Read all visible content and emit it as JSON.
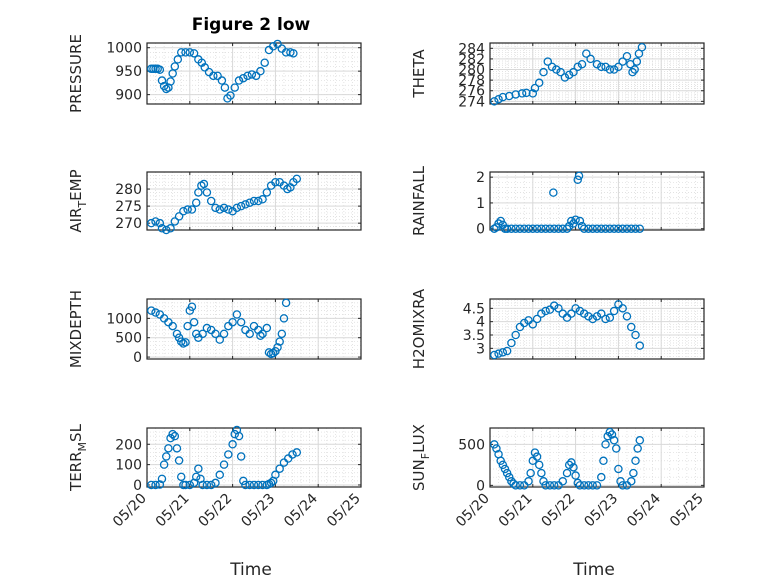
{
  "title": "Figure 2 low",
  "xlabel": "Time",
  "x_tick_labels": [
    "05/20",
    "05/21",
    "05/22",
    "05/23",
    "05/24",
    "05/25"
  ],
  "marker_color": "#0072BD",
  "grid_color": "#d9d9d9",
  "chart_data": [
    {
      "type": "scatter",
      "ylabel_main": "PRESSURE",
      "ylabel_sub": "",
      "ylabel_tail": "",
      "xlim": [
        0,
        5
      ],
      "ylim": [
        880,
        1010
      ],
      "yticks": [
        900,
        950,
        1000
      ],
      "grid": true,
      "points": [
        [
          0.1,
          955
        ],
        [
          0.15,
          955
        ],
        [
          0.2,
          955
        ],
        [
          0.25,
          955
        ],
        [
          0.3,
          953
        ],
        [
          0.35,
          930
        ],
        [
          0.4,
          918
        ],
        [
          0.45,
          912
        ],
        [
          0.5,
          915
        ],
        [
          0.55,
          928
        ],
        [
          0.6,
          945
        ],
        [
          0.65,
          960
        ],
        [
          0.72,
          975
        ],
        [
          0.8,
          990
        ],
        [
          0.9,
          990
        ],
        [
          1.0,
          990
        ],
        [
          1.1,
          988
        ],
        [
          1.2,
          975
        ],
        [
          1.28,
          968
        ],
        [
          1.35,
          958
        ],
        [
          1.45,
          948
        ],
        [
          1.55,
          940
        ],
        [
          1.65,
          940
        ],
        [
          1.75,
          930
        ],
        [
          1.82,
          915
        ],
        [
          1.88,
          892
        ],
        [
          1.95,
          898
        ],
        [
          2.05,
          915
        ],
        [
          2.15,
          930
        ],
        [
          2.25,
          935
        ],
        [
          2.35,
          940
        ],
        [
          2.45,
          943
        ],
        [
          2.55,
          940
        ],
        [
          2.65,
          950
        ],
        [
          2.75,
          968
        ],
        [
          2.85,
          995
        ],
        [
          2.95,
          1003
        ],
        [
          3.05,
          1008
        ],
        [
          3.15,
          998
        ],
        [
          3.25,
          990
        ],
        [
          3.35,
          990
        ],
        [
          3.42,
          988
        ]
      ]
    },
    {
      "type": "scatter",
      "ylabel_main": "THETA",
      "ylabel_sub": "",
      "ylabel_tail": "",
      "xlim": [
        0,
        5
      ],
      "ylim": [
        273.5,
        285
      ],
      "yticks": [
        274,
        276,
        278,
        280,
        282,
        284
      ],
      "grid": true,
      "points": [
        [
          0.1,
          274
        ],
        [
          0.2,
          274.4
        ],
        [
          0.3,
          274.8
        ],
        [
          0.45,
          275
        ],
        [
          0.6,
          275.3
        ],
        [
          0.75,
          275.5
        ],
        [
          0.85,
          275.6
        ],
        [
          1.0,
          275.5
        ],
        [
          1.05,
          276.5
        ],
        [
          1.15,
          277.5
        ],
        [
          1.25,
          279.5
        ],
        [
          1.35,
          281.5
        ],
        [
          1.45,
          280.5
        ],
        [
          1.55,
          280
        ],
        [
          1.65,
          279.5
        ],
        [
          1.75,
          278.5
        ],
        [
          1.85,
          279
        ],
        [
          1.95,
          279.5
        ],
        [
          2.05,
          280.5
        ],
        [
          2.15,
          281
        ],
        [
          2.25,
          283
        ],
        [
          2.35,
          282
        ],
        [
          2.5,
          281
        ],
        [
          2.6,
          280.5
        ],
        [
          2.7,
          280.5
        ],
        [
          2.8,
          280
        ],
        [
          2.9,
          280
        ],
        [
          3.0,
          280.5
        ],
        [
          3.1,
          281.5
        ],
        [
          3.2,
          282.5
        ],
        [
          3.28,
          281
        ],
        [
          3.33,
          279.5
        ],
        [
          3.38,
          280
        ],
        [
          3.43,
          281.5
        ],
        [
          3.48,
          283
        ],
        [
          3.55,
          284.2
        ]
      ]
    },
    {
      "type": "scatter",
      "ylabel_main": "AIR",
      "ylabel_sub": "T",
      "ylabel_tail": "EMP",
      "xlim": [
        0,
        5
      ],
      "ylim": [
        268,
        285
      ],
      "yticks": [
        270,
        275,
        280
      ],
      "grid": true,
      "points": [
        [
          0.1,
          270
        ],
        [
          0.2,
          270.5
        ],
        [
          0.3,
          270
        ],
        [
          0.35,
          268.5
        ],
        [
          0.45,
          268
        ],
        [
          0.55,
          268.5
        ],
        [
          0.65,
          270.5
        ],
        [
          0.75,
          272
        ],
        [
          0.85,
          273.5
        ],
        [
          0.95,
          274
        ],
        [
          1.05,
          274
        ],
        [
          1.15,
          276
        ],
        [
          1.2,
          279
        ],
        [
          1.27,
          281
        ],
        [
          1.33,
          281.5
        ],
        [
          1.4,
          279
        ],
        [
          1.5,
          276.5
        ],
        [
          1.6,
          274.5
        ],
        [
          1.7,
          274
        ],
        [
          1.8,
          274.5
        ],
        [
          1.9,
          274
        ],
        [
          2.0,
          273.5
        ],
        [
          2.1,
          274.5
        ],
        [
          2.2,
          275
        ],
        [
          2.3,
          275.5
        ],
        [
          2.4,
          276
        ],
        [
          2.5,
          276.5
        ],
        [
          2.6,
          276.5
        ],
        [
          2.7,
          277
        ],
        [
          2.8,
          279
        ],
        [
          2.9,
          281
        ],
        [
          3.0,
          282
        ],
        [
          3.1,
          282
        ],
        [
          3.2,
          281
        ],
        [
          3.28,
          280
        ],
        [
          3.35,
          280.5
        ],
        [
          3.42,
          282
        ],
        [
          3.5,
          283
        ]
      ]
    },
    {
      "type": "scatter",
      "ylabel_main": "RAINFALL",
      "ylabel_sub": "",
      "ylabel_tail": "",
      "xlim": [
        0,
        5
      ],
      "ylim": [
        -0.05,
        2.2
      ],
      "yticks": [
        0,
        1,
        2
      ],
      "grid": true,
      "points": [
        [
          0.1,
          0
        ],
        [
          0.15,
          0.05
        ],
        [
          0.2,
          0.2
        ],
        [
          0.25,
          0.3
        ],
        [
          0.3,
          0.15
        ],
        [
          0.35,
          0
        ],
        [
          0.4,
          0
        ],
        [
          0.5,
          0
        ],
        [
          0.6,
          0
        ],
        [
          0.7,
          0
        ],
        [
          0.8,
          0
        ],
        [
          0.9,
          0
        ],
        [
          1.0,
          0
        ],
        [
          1.1,
          0
        ],
        [
          1.2,
          0
        ],
        [
          1.3,
          0
        ],
        [
          1.4,
          0
        ],
        [
          1.48,
          1.4
        ],
        [
          1.5,
          0
        ],
        [
          1.6,
          0
        ],
        [
          1.7,
          0
        ],
        [
          1.8,
          0
        ],
        [
          1.85,
          0.1
        ],
        [
          1.9,
          0.3
        ],
        [
          1.95,
          0.2
        ],
        [
          2.0,
          0.35
        ],
        [
          2.05,
          1.9
        ],
        [
          2.08,
          2.05
        ],
        [
          2.1,
          0.3
        ],
        [
          2.15,
          0.1
        ],
        [
          2.2,
          0
        ],
        [
          2.3,
          0
        ],
        [
          2.4,
          0
        ],
        [
          2.5,
          0
        ],
        [
          2.6,
          0
        ],
        [
          2.7,
          0
        ],
        [
          2.8,
          0
        ],
        [
          2.9,
          0
        ],
        [
          3.0,
          0
        ],
        [
          3.1,
          0
        ],
        [
          3.2,
          0
        ],
        [
          3.3,
          0
        ],
        [
          3.4,
          0
        ],
        [
          3.5,
          0
        ]
      ]
    },
    {
      "type": "scatter",
      "ylabel_main": "MIXDEPTH",
      "ylabel_sub": "",
      "ylabel_tail": "",
      "xlim": [
        0,
        5
      ],
      "ylim": [
        -50,
        1500
      ],
      "yticks": [
        0,
        500,
        1000
      ],
      "grid": true,
      "points": [
        [
          0.1,
          1200
        ],
        [
          0.2,
          1150
        ],
        [
          0.3,
          1100
        ],
        [
          0.4,
          1000
        ],
        [
          0.5,
          900
        ],
        [
          0.6,
          800
        ],
        [
          0.7,
          600
        ],
        [
          0.75,
          500
        ],
        [
          0.8,
          400
        ],
        [
          0.85,
          350
        ],
        [
          0.9,
          380
        ],
        [
          0.95,
          800
        ],
        [
          1.0,
          1200
        ],
        [
          1.05,
          1300
        ],
        [
          1.1,
          900
        ],
        [
          1.15,
          600
        ],
        [
          1.2,
          500
        ],
        [
          1.3,
          600
        ],
        [
          1.4,
          750
        ],
        [
          1.5,
          700
        ],
        [
          1.6,
          600
        ],
        [
          1.7,
          450
        ],
        [
          1.8,
          600
        ],
        [
          1.9,
          800
        ],
        [
          2.0,
          900
        ],
        [
          2.1,
          1100
        ],
        [
          2.2,
          900
        ],
        [
          2.3,
          700
        ],
        [
          2.4,
          600
        ],
        [
          2.5,
          800
        ],
        [
          2.6,
          700
        ],
        [
          2.65,
          550
        ],
        [
          2.7,
          600
        ],
        [
          2.8,
          750
        ],
        [
          2.85,
          120
        ],
        [
          2.9,
          80
        ],
        [
          2.95,
          100
        ],
        [
          3.0,
          150
        ],
        [
          3.05,
          250
        ],
        [
          3.1,
          400
        ],
        [
          3.15,
          600
        ],
        [
          3.2,
          1000
        ],
        [
          3.25,
          1400
        ]
      ]
    },
    {
      "type": "scatter",
      "ylabel_main": "H2OMIXRA",
      "ylabel_sub": "",
      "ylabel_tail": "",
      "xlim": [
        0,
        5
      ],
      "ylim": [
        2.6,
        4.85
      ],
      "yticks": [
        3,
        3.5,
        4,
        4.5
      ],
      "grid": true,
      "points": [
        [
          0.1,
          2.75
        ],
        [
          0.2,
          2.8
        ],
        [
          0.3,
          2.85
        ],
        [
          0.4,
          2.9
        ],
        [
          0.5,
          3.2
        ],
        [
          0.6,
          3.5
        ],
        [
          0.7,
          3.8
        ],
        [
          0.8,
          3.95
        ],
        [
          0.9,
          4.05
        ],
        [
          1.0,
          3.9
        ],
        [
          1.1,
          4.1
        ],
        [
          1.2,
          4.3
        ],
        [
          1.3,
          4.4
        ],
        [
          1.4,
          4.45
        ],
        [
          1.5,
          4.6
        ],
        [
          1.6,
          4.5
        ],
        [
          1.7,
          4.3
        ],
        [
          1.8,
          4.15
        ],
        [
          1.9,
          4.3
        ],
        [
          2.0,
          4.5
        ],
        [
          2.1,
          4.4
        ],
        [
          2.2,
          4.3
        ],
        [
          2.3,
          4.2
        ],
        [
          2.4,
          4.1
        ],
        [
          2.5,
          4.2
        ],
        [
          2.6,
          4.3
        ],
        [
          2.7,
          4.1
        ],
        [
          2.8,
          4.15
        ],
        [
          2.9,
          4.4
        ],
        [
          3.0,
          4.65
        ],
        [
          3.1,
          4.5
        ],
        [
          3.2,
          4.2
        ],
        [
          3.3,
          3.8
        ],
        [
          3.4,
          3.5
        ],
        [
          3.5,
          3.1
        ]
      ]
    },
    {
      "type": "scatter",
      "ylabel_main": "TERR",
      "ylabel_sub": "M",
      "ylabel_tail": "SL",
      "xlim": [
        0,
        5
      ],
      "ylim": [
        -10,
        280
      ],
      "yticks": [
        0,
        100,
        200
      ],
      "grid": true,
      "points": [
        [
          0.1,
          0
        ],
        [
          0.2,
          0
        ],
        [
          0.3,
          2
        ],
        [
          0.35,
          30
        ],
        [
          0.4,
          100
        ],
        [
          0.45,
          140
        ],
        [
          0.5,
          180
        ],
        [
          0.55,
          230
        ],
        [
          0.6,
          250
        ],
        [
          0.65,
          240
        ],
        [
          0.7,
          180
        ],
        [
          0.75,
          120
        ],
        [
          0.8,
          40
        ],
        [
          0.85,
          0
        ],
        [
          0.9,
          0
        ],
        [
          1.0,
          0
        ],
        [
          1.1,
          10
        ],
        [
          1.15,
          40
        ],
        [
          1.2,
          80
        ],
        [
          1.25,
          30
        ],
        [
          1.3,
          0
        ],
        [
          1.4,
          0
        ],
        [
          1.5,
          0
        ],
        [
          1.6,
          10
        ],
        [
          1.7,
          50
        ],
        [
          1.8,
          100
        ],
        [
          1.9,
          150
        ],
        [
          2.0,
          200
        ],
        [
          2.05,
          250
        ],
        [
          2.1,
          270
        ],
        [
          2.15,
          240
        ],
        [
          2.2,
          140
        ],
        [
          2.25,
          20
        ],
        [
          2.3,
          0
        ],
        [
          2.4,
          0
        ],
        [
          2.5,
          0
        ],
        [
          2.6,
          0
        ],
        [
          2.7,
          0
        ],
        [
          2.8,
          0
        ],
        [
          2.85,
          5
        ],
        [
          2.9,
          10
        ],
        [
          2.95,
          20
        ],
        [
          3.0,
          50
        ],
        [
          3.1,
          80
        ],
        [
          3.2,
          110
        ],
        [
          3.3,
          130
        ],
        [
          3.4,
          150
        ],
        [
          3.5,
          160
        ]
      ]
    },
    {
      "type": "scatter",
      "ylabel_main": "SUN",
      "ylabel_sub": "F",
      "ylabel_tail": "LUX",
      "xlim": [
        0,
        5
      ],
      "ylim": [
        -20,
        700
      ],
      "yticks": [
        0,
        500
      ],
      "grid": true,
      "points": [
        [
          0.1,
          500
        ],
        [
          0.15,
          450
        ],
        [
          0.2,
          380
        ],
        [
          0.25,
          300
        ],
        [
          0.3,
          250
        ],
        [
          0.35,
          200
        ],
        [
          0.4,
          150
        ],
        [
          0.45,
          100
        ],
        [
          0.5,
          50
        ],
        [
          0.55,
          20
        ],
        [
          0.6,
          0
        ],
        [
          0.7,
          0
        ],
        [
          0.8,
          0
        ],
        [
          0.9,
          50
        ],
        [
          0.95,
          150
        ],
        [
          1.0,
          300
        ],
        [
          1.05,
          400
        ],
        [
          1.1,
          350
        ],
        [
          1.15,
          250
        ],
        [
          1.2,
          150
        ],
        [
          1.25,
          50
        ],
        [
          1.3,
          0
        ],
        [
          1.4,
          0
        ],
        [
          1.5,
          0
        ],
        [
          1.6,
          0
        ],
        [
          1.7,
          50
        ],
        [
          1.8,
          150
        ],
        [
          1.85,
          250
        ],
        [
          1.9,
          280
        ],
        [
          1.95,
          220
        ],
        [
          2.0,
          120
        ],
        [
          2.05,
          30
        ],
        [
          2.1,
          0
        ],
        [
          2.2,
          0
        ],
        [
          2.3,
          0
        ],
        [
          2.4,
          0
        ],
        [
          2.5,
          0
        ],
        [
          2.6,
          100
        ],
        [
          2.65,
          300
        ],
        [
          2.7,
          500
        ],
        [
          2.75,
          600
        ],
        [
          2.8,
          650
        ],
        [
          2.85,
          620
        ],
        [
          2.9,
          550
        ],
        [
          2.95,
          450
        ],
        [
          3.0,
          200
        ],
        [
          3.05,
          50
        ],
        [
          3.1,
          0
        ],
        [
          3.2,
          0
        ],
        [
          3.3,
          50
        ],
        [
          3.35,
          150
        ],
        [
          3.4,
          300
        ],
        [
          3.45,
          450
        ],
        [
          3.5,
          550
        ]
      ]
    }
  ]
}
